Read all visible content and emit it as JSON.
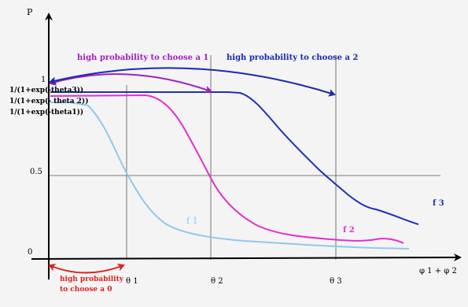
{
  "axes": {
    "y_label": "P",
    "x_label": "φ 1 + φ 2",
    "y_tick_1": "1",
    "y_tick_half": "0.5",
    "y_tick_0": "0"
  },
  "y_labels": {
    "theta3": "1/(1+exp(-theta3))",
    "theta2": "1/(1+exp(- theta 2))",
    "theta1": "1/(1+exp(-theta1))"
  },
  "thresholds": {
    "theta1": "θ 1",
    "theta2": "θ 2",
    "theta3": "θ 3"
  },
  "curve_labels": {
    "f1": "f 1",
    "f2": "f 2",
    "f3": "f 3"
  },
  "annotations": {
    "choose_a1": "high probability to choose a 1",
    "choose_a2": "high probability to choose a 2",
    "choose_a0_line1": "high probability",
    "choose_a0_line2": "to choose a 0"
  },
  "colors": {
    "f1": "#8ec8ee",
    "f2": "#e030d0",
    "f3": "#2030b8",
    "a0": "#e02020",
    "a1": "#a020c0",
    "a2": "#1a2ab0",
    "axis": "#000000",
    "grid": "#555555"
  }
}
